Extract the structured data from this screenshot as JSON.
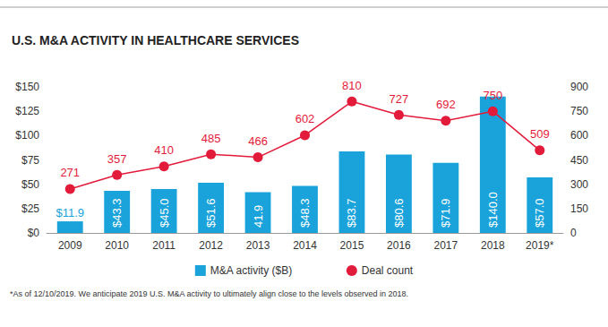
{
  "chart_data": {
    "type": "bar",
    "title": "U.S. M&A ACTIVITY IN HEALTHCARE SERVICES",
    "footnote": "*As of 12/10/2019. We anticipate 2019 U.S. M&A activity to ultimately align close to the levels observed in 2018.",
    "categories": [
      "2009",
      "2010",
      "2011",
      "2012",
      "2013",
      "2014",
      "2015",
      "2016",
      "2017",
      "2018",
      "2019*"
    ],
    "series": [
      {
        "name": "M&A activity ($B)",
        "type": "bar",
        "color": "#1aa3db",
        "values": [
          11.9,
          43.3,
          45.0,
          51.6,
          41.9,
          48.3,
          83.7,
          80.6,
          71.9,
          140.0,
          57.0
        ],
        "value_labels": [
          "$11.9",
          "$43.3",
          "$45.0",
          "$51.6",
          "41.9",
          "$48.3",
          "$83.7",
          "$80.6",
          "$71.9",
          "$140.0",
          "$57.0"
        ]
      },
      {
        "name": "Deal count",
        "type": "line",
        "axis": "y2",
        "color": "#e31b3b",
        "marker": "circle",
        "values": [
          271,
          357,
          410,
          485,
          466,
          602,
          810,
          727,
          692,
          750,
          509
        ]
      }
    ],
    "ylim": [
      0,
      150
    ],
    "yticks": [
      {
        "value": 0,
        "label": "$0"
      },
      {
        "value": 25,
        "label": "$25"
      },
      {
        "value": 50,
        "label": "$50"
      },
      {
        "value": 75,
        "label": "$75"
      },
      {
        "value": 100,
        "label": "$100"
      },
      {
        "value": 125,
        "label": "$125"
      },
      {
        "value": 150,
        "label": "$150"
      }
    ],
    "y2lim": [
      0,
      900
    ],
    "y2ticks": [
      0,
      150,
      300,
      450,
      600,
      750,
      900
    ],
    "grid": false,
    "data_labels": true,
    "legend": "bottom"
  }
}
